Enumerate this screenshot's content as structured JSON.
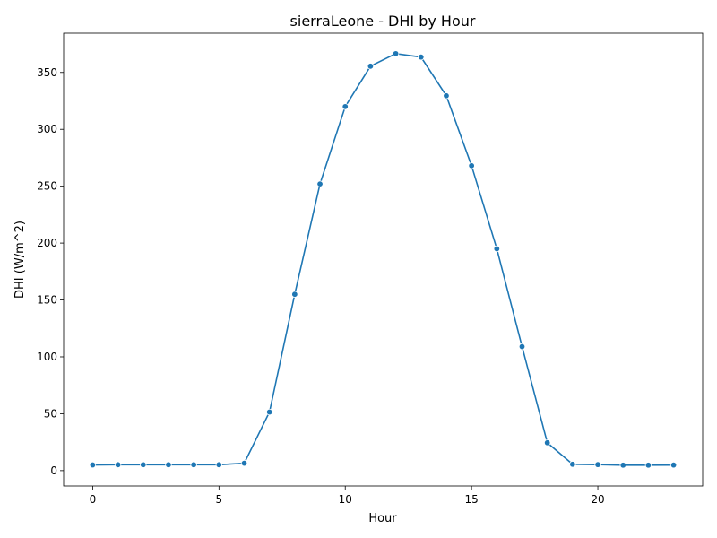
{
  "chart_data": {
    "type": "line",
    "title": "sierraLeone - DHI by Hour",
    "xlabel": "Hour",
    "ylabel": "DHI (W/m^2)",
    "xlim": [
      -1.15,
      24.15
    ],
    "ylim": [
      -13.5,
      384.5
    ],
    "xticks": [
      0,
      5,
      10,
      15,
      20
    ],
    "yticks": [
      0,
      50,
      100,
      150,
      200,
      250,
      300,
      350
    ],
    "grid": false,
    "line_color": "#1f77b4",
    "marker": "circle",
    "series": [
      {
        "x": [
          0,
          1,
          2,
          3,
          4,
          5,
          6,
          7,
          8,
          9,
          10,
          11,
          12,
          13,
          14,
          15,
          16,
          17,
          18,
          19,
          20,
          21,
          22,
          23
        ],
        "values": [
          5.0,
          5.2,
          5.2,
          5.2,
          5.2,
          5.2,
          6.5,
          51.5,
          155.0,
          252.0,
          320.0,
          355.5,
          366.5,
          363.5,
          329.5,
          268.0,
          195.0,
          109.0,
          24.5,
          5.6,
          5.3,
          4.8,
          4.8,
          4.9
        ]
      }
    ]
  }
}
